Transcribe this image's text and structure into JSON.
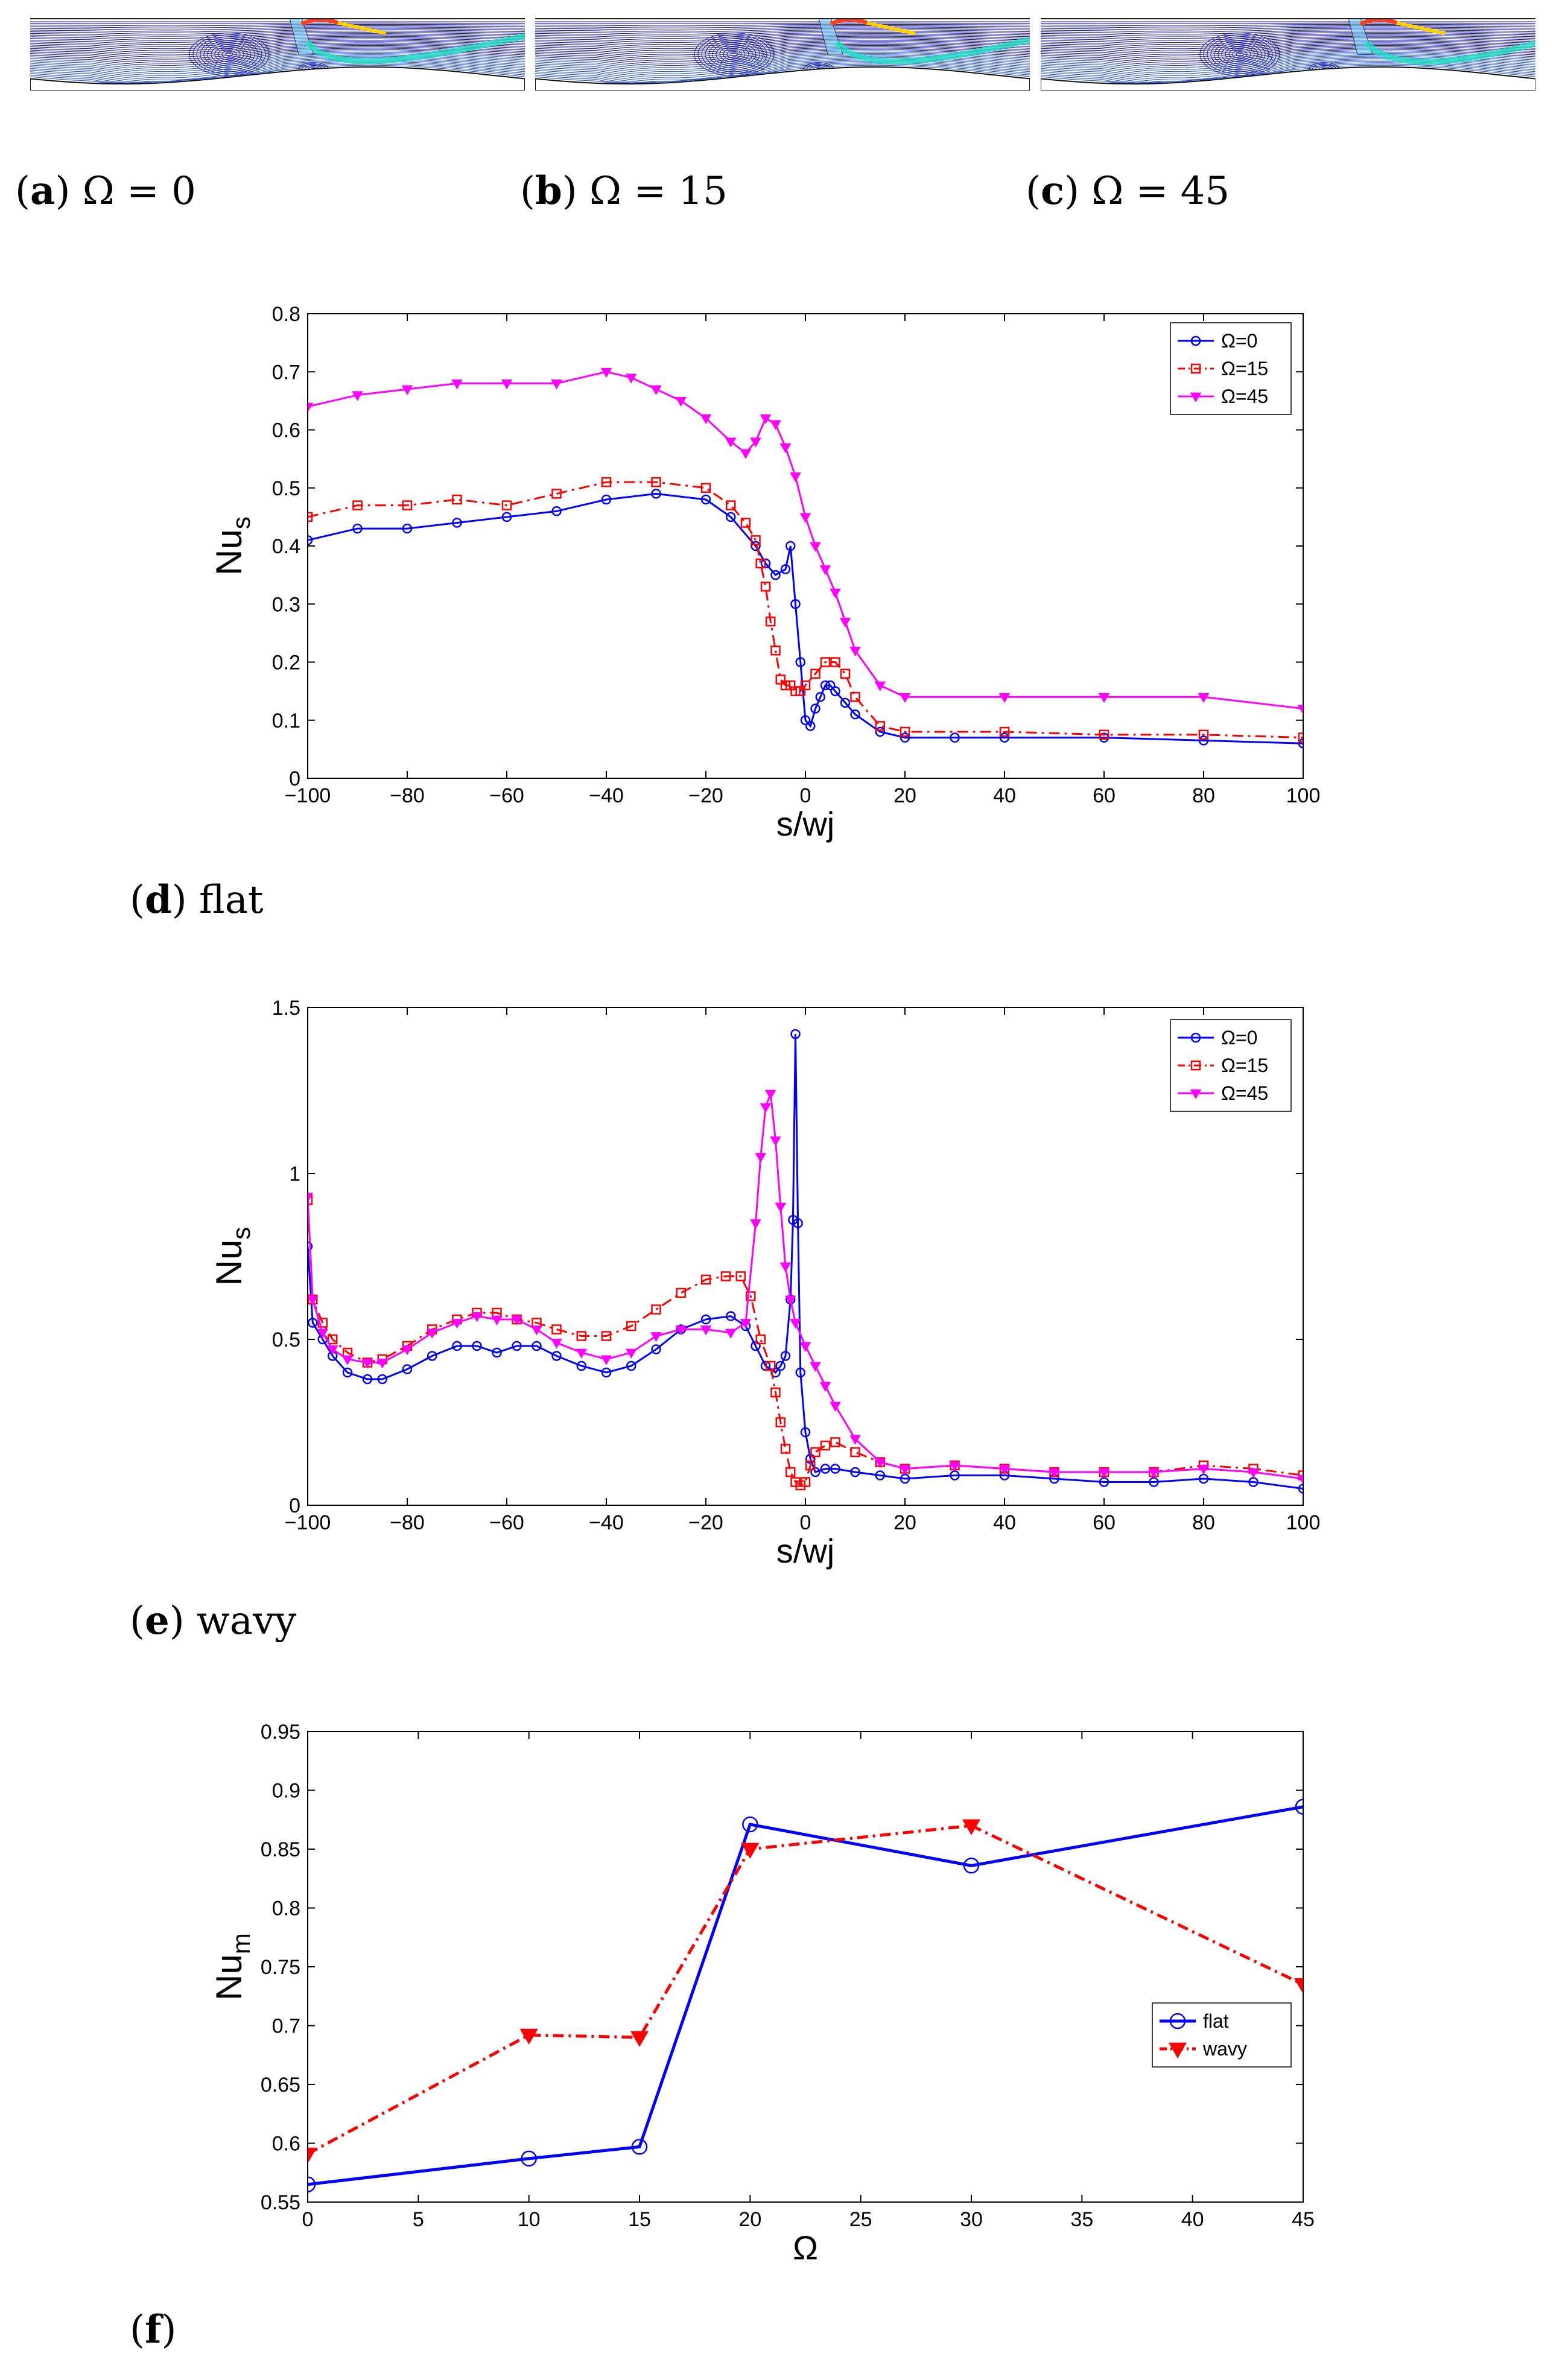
{
  "panels_top": [
    {
      "letter": "a",
      "label": "Ω = 0"
    },
    {
      "letter": "b",
      "label": "Ω = 15"
    },
    {
      "letter": "c",
      "label": "Ω = 45"
    }
  ],
  "captions": {
    "d": {
      "letter": "d",
      "text": "flat"
    },
    "e": {
      "letter": "e",
      "text": "wavy"
    },
    "f": {
      "letter": "f",
      "text": ""
    }
  },
  "colors": {
    "blue": "#0000ff",
    "red": "#ff0000",
    "magenta": "#ff00ff"
  },
  "chart_data": [
    {
      "id": "d",
      "type": "line",
      "xlabel": "s/wj",
      "ylabel_main": "Nu",
      "ylabel_sub": "s",
      "xlim": [
        -100,
        100
      ],
      "ylim": [
        0,
        0.8
      ],
      "xticks": [
        -100,
        -80,
        -60,
        -40,
        -20,
        0,
        20,
        40,
        60,
        80,
        100
      ],
      "xtick_labels": [
        "−100",
        "−80",
        "−60",
        "−40",
        "−20",
        "0",
        "20",
        "40",
        "60",
        "80",
        "100"
      ],
      "yticks": [
        0,
        0.1,
        0.2,
        0.3,
        0.4,
        0.5,
        0.6,
        0.7,
        0.8
      ],
      "ytick_labels": [
        "0",
        "0.1",
        "0.2",
        "0.3",
        "0.4",
        "0.5",
        "0.6",
        "0.7",
        "0.8"
      ],
      "legend": {
        "position": "top-right",
        "entries": [
          "Ω=0",
          "Ω=15",
          "Ω=45"
        ]
      },
      "series": [
        {
          "name": "Ω=0",
          "color": "#0000ff",
          "marker": "circle",
          "dash": "solid",
          "x": [
            -100,
            -90,
            -80,
            -70,
            -60,
            -50,
            -40,
            -30,
            -20,
            -15,
            -10,
            -8,
            -6,
            -4,
            -3,
            -2,
            -1,
            0,
            1,
            2,
            3,
            4,
            5,
            6,
            8,
            10,
            15,
            20,
            30,
            40,
            60,
            80,
            100
          ],
          "y": [
            0.41,
            0.43,
            0.43,
            0.44,
            0.45,
            0.46,
            0.48,
            0.49,
            0.48,
            0.45,
            0.4,
            0.37,
            0.35,
            0.36,
            0.4,
            0.3,
            0.2,
            0.1,
            0.09,
            0.12,
            0.14,
            0.16,
            0.16,
            0.15,
            0.13,
            0.11,
            0.08,
            0.07,
            0.07,
            0.07,
            0.07,
            0.065,
            0.06
          ]
        },
        {
          "name": "Ω=15",
          "color": "#ff0000",
          "marker": "square",
          "dash": "dashdot",
          "x": [
            -100,
            -90,
            -80,
            -70,
            -60,
            -50,
            -40,
            -30,
            -20,
            -15,
            -12,
            -10,
            -9,
            -8,
            -7,
            -6,
            -5,
            -4,
            -3,
            -2,
            -1,
            0,
            2,
            4,
            6,
            8,
            10,
            15,
            20,
            40,
            60,
            80,
            100
          ],
          "y": [
            0.45,
            0.47,
            0.47,
            0.48,
            0.47,
            0.49,
            0.51,
            0.51,
            0.5,
            0.47,
            0.44,
            0.41,
            0.37,
            0.33,
            0.27,
            0.22,
            0.17,
            0.16,
            0.16,
            0.15,
            0.15,
            0.16,
            0.18,
            0.2,
            0.2,
            0.18,
            0.14,
            0.09,
            0.08,
            0.08,
            0.075,
            0.075,
            0.07
          ]
        },
        {
          "name": "Ω=45",
          "color": "#ff00ff",
          "marker": "triangle-down",
          "dash": "solid",
          "x": [
            -100,
            -90,
            -80,
            -70,
            -60,
            -50,
            -40,
            -35,
            -30,
            -25,
            -20,
            -15,
            -12,
            -10,
            -8,
            -6,
            -4,
            -2,
            0,
            2,
            4,
            6,
            8,
            10,
            15,
            20,
            40,
            60,
            80,
            100
          ],
          "y": [
            0.64,
            0.66,
            0.67,
            0.68,
            0.68,
            0.68,
            0.7,
            0.69,
            0.67,
            0.65,
            0.62,
            0.58,
            0.56,
            0.58,
            0.62,
            0.61,
            0.57,
            0.52,
            0.45,
            0.4,
            0.36,
            0.32,
            0.27,
            0.22,
            0.16,
            0.14,
            0.14,
            0.14,
            0.14,
            0.12
          ]
        }
      ]
    },
    {
      "id": "e",
      "type": "line",
      "xlabel": "s/wj",
      "ylabel_main": "Nu",
      "ylabel_sub": "s",
      "xlim": [
        -100,
        100
      ],
      "ylim": [
        0,
        1.5
      ],
      "xticks": [
        -100,
        -80,
        -60,
        -40,
        -20,
        0,
        20,
        40,
        60,
        80,
        100
      ],
      "xtick_labels": [
        "−100",
        "−80",
        "−60",
        "−40",
        "−20",
        "0",
        "20",
        "40",
        "60",
        "80",
        "100"
      ],
      "yticks": [
        0,
        0.5,
        1,
        1.5
      ],
      "ytick_labels": [
        "0",
        "0.5",
        "1",
        "1.5"
      ],
      "legend": {
        "position": "top-right",
        "entries": [
          "Ω=0",
          "Ω=15",
          "Ω=45"
        ]
      },
      "series": [
        {
          "name": "Ω=0",
          "color": "#0000ff",
          "marker": "circle",
          "dash": "solid",
          "x": [
            -100,
            -99,
            -97,
            -95,
            -92,
            -88,
            -85,
            -80,
            -75,
            -70,
            -66,
            -62,
            -58,
            -54,
            -50,
            -45,
            -40,
            -35,
            -30,
            -25,
            -20,
            -15,
            -12,
            -10,
            -8,
            -6,
            -5,
            -4,
            -3,
            -2.5,
            -2,
            -1.5,
            -1,
            0,
            1,
            2,
            4,
            6,
            10,
            15,
            20,
            30,
            40,
            50,
            60,
            70,
            80,
            90,
            100
          ],
          "y": [
            0.78,
            0.55,
            0.5,
            0.45,
            0.4,
            0.38,
            0.38,
            0.41,
            0.45,
            0.48,
            0.48,
            0.46,
            0.48,
            0.48,
            0.45,
            0.42,
            0.4,
            0.42,
            0.47,
            0.53,
            0.56,
            0.57,
            0.54,
            0.48,
            0.42,
            0.4,
            0.42,
            0.45,
            0.62,
            0.86,
            1.42,
            0.85,
            0.4,
            0.22,
            0.14,
            0.1,
            0.11,
            0.11,
            0.1,
            0.09,
            0.08,
            0.09,
            0.09,
            0.08,
            0.07,
            0.07,
            0.08,
            0.07,
            0.05
          ]
        },
        {
          "name": "Ω=15",
          "color": "#ff0000",
          "marker": "square",
          "dash": "dashdot",
          "x": [
            -100,
            -99,
            -97,
            -95,
            -92,
            -88,
            -85,
            -80,
            -75,
            -70,
            -66,
            -62,
            -58,
            -54,
            -50,
            -45,
            -40,
            -35,
            -30,
            -25,
            -20,
            -16,
            -13,
            -11,
            -9,
            -7,
            -6,
            -5,
            -4,
            -3,
            -2,
            -1,
            0,
            1,
            2,
            4,
            6,
            10,
            15,
            20,
            30,
            40,
            50,
            60,
            70,
            80,
            90,
            100
          ],
          "y": [
            0.92,
            0.62,
            0.55,
            0.5,
            0.46,
            0.43,
            0.44,
            0.48,
            0.53,
            0.56,
            0.58,
            0.58,
            0.56,
            0.55,
            0.53,
            0.51,
            0.51,
            0.54,
            0.59,
            0.64,
            0.68,
            0.69,
            0.69,
            0.63,
            0.5,
            0.42,
            0.34,
            0.25,
            0.17,
            0.1,
            0.07,
            0.06,
            0.07,
            0.12,
            0.16,
            0.18,
            0.19,
            0.16,
            0.13,
            0.11,
            0.12,
            0.11,
            0.1,
            0.1,
            0.1,
            0.12,
            0.11,
            0.09
          ]
        },
        {
          "name": "Ω=45",
          "color": "#ff00ff",
          "marker": "triangle-down",
          "dash": "solid",
          "x": [
            -100,
            -99,
            -97,
            -95,
            -92,
            -88,
            -85,
            -80,
            -75,
            -70,
            -66,
            -62,
            -58,
            -54,
            -50,
            -45,
            -40,
            -35,
            -30,
            -25,
            -20,
            -15,
            -12,
            -10,
            -9,
            -8,
            -7,
            -6,
            -5,
            -4,
            -3,
            -2,
            0,
            2,
            4,
            6,
            10,
            15,
            20,
            30,
            40,
            50,
            60,
            70,
            80,
            90,
            100
          ],
          "y": [
            0.93,
            0.62,
            0.52,
            0.47,
            0.44,
            0.43,
            0.43,
            0.47,
            0.52,
            0.55,
            0.57,
            0.56,
            0.56,
            0.53,
            0.49,
            0.46,
            0.44,
            0.46,
            0.51,
            0.53,
            0.53,
            0.52,
            0.55,
            0.85,
            1.05,
            1.2,
            1.24,
            1.1,
            0.9,
            0.72,
            0.62,
            0.55,
            0.48,
            0.42,
            0.36,
            0.3,
            0.2,
            0.13,
            0.11,
            0.12,
            0.11,
            0.1,
            0.1,
            0.1,
            0.11,
            0.1,
            0.08
          ]
        }
      ]
    },
    {
      "id": "f",
      "type": "line",
      "xlabel": "Ω",
      "ylabel_main": "Nu",
      "ylabel_sub": "m",
      "xlim": [
        0,
        45
      ],
      "ylim": [
        0.55,
        0.95
      ],
      "xticks": [
        0,
        5,
        10,
        15,
        20,
        25,
        30,
        35,
        40,
        45
      ],
      "xtick_labels": [
        "0",
        "5",
        "10",
        "15",
        "20",
        "25",
        "30",
        "35",
        "40",
        "45"
      ],
      "yticks": [
        0.55,
        0.6,
        0.65,
        0.7,
        0.75,
        0.8,
        0.85,
        0.9,
        0.95
      ],
      "ytick_labels": [
        "0.55",
        "0.6",
        "0.65",
        "0.7",
        "0.75",
        "0.8",
        "0.85",
        "0.9",
        "0.95"
      ],
      "legend": {
        "position": "right",
        "entries": [
          "flat",
          "wavy"
        ]
      },
      "series": [
        {
          "name": "flat",
          "color": "#0000ff",
          "marker": "circle",
          "dash": "solid",
          "x": [
            0,
            10,
            15,
            20,
            30,
            45
          ],
          "y": [
            0.565,
            0.587,
            0.597,
            0.871,
            0.836,
            0.886
          ]
        },
        {
          "name": "wavy",
          "color": "#ff0000",
          "marker": "triangle-down",
          "dash": "dashdot",
          "x": [
            0,
            10,
            15,
            20,
            30,
            45
          ],
          "y": [
            0.591,
            0.692,
            0.69,
            0.85,
            0.87,
            0.735
          ]
        }
      ]
    }
  ]
}
